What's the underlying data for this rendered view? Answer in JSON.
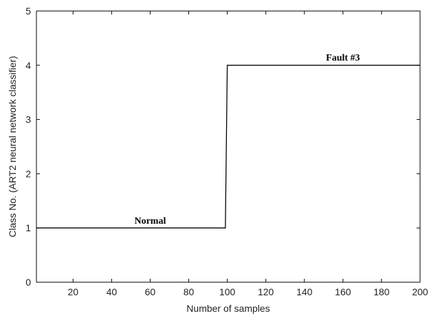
{
  "chart_data": {
    "type": "line",
    "xlabel": "Number of samples",
    "ylabel": "Class No. (ART2 neural network classifier)",
    "xlim": [
      1,
      200
    ],
    "ylim": [
      0,
      5
    ],
    "x_ticks": [
      20,
      40,
      60,
      80,
      100,
      120,
      140,
      160,
      180,
      200
    ],
    "y_ticks": [
      0,
      1,
      2,
      3,
      4,
      5
    ],
    "grid": false,
    "line_color": "#000000",
    "series": [
      {
        "x": [
          1,
          99,
          100,
          200
        ],
        "y": [
          1,
          1,
          4,
          4
        ]
      }
    ],
    "annotations": [
      {
        "text": "Normal",
        "x": 60,
        "y": 1
      },
      {
        "text": "Fault #3",
        "x": 160,
        "y": 4
      }
    ]
  }
}
